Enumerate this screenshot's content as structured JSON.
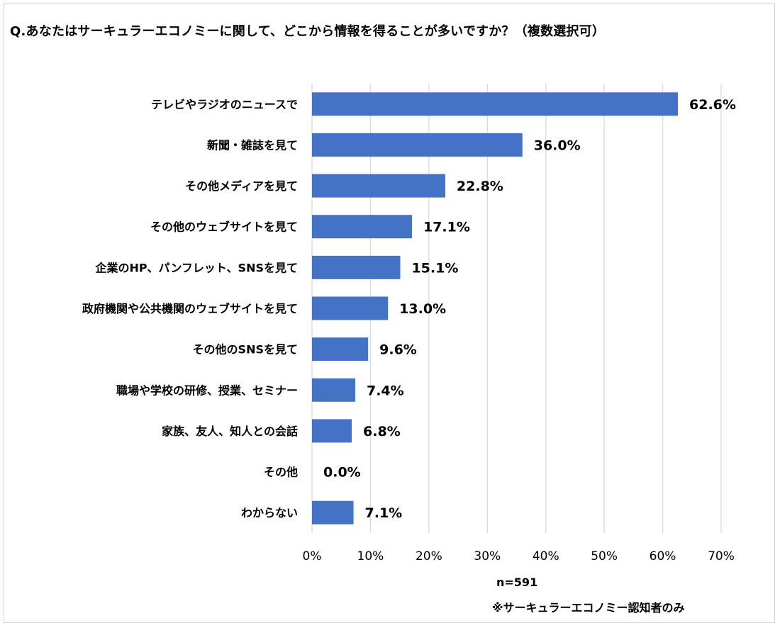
{
  "chart_data": {
    "type": "bar",
    "orientation": "horizontal",
    "title": "Q.あなたはサーキュラーエコノミーに関して、どこから情報を得ることが多いですか？（複数選択可）",
    "categories": [
      "テレビやラジオのニュースで",
      "新聞・雑誌を見て",
      "その他メディアを見て",
      "その他のウェブサイトを見て",
      "企業のHP、パンフレット、SNSを見て",
      "政府機関や公共機関のウェブサイトを見て",
      "その他のSNSを見て",
      "職場や学校の研修、授業、セミナー",
      "家族、友人、知人との会話",
      "その他",
      "わからない"
    ],
    "values": [
      62.6,
      36.0,
      22.8,
      17.1,
      15.1,
      13.0,
      9.6,
      7.4,
      6.8,
      0.0,
      7.1
    ],
    "value_labels": [
      "62.6%",
      "36.0%",
      "22.8%",
      "17.1%",
      "15.1%",
      "13.0%",
      "9.6%",
      "7.4%",
      "6.8%",
      "0.0%",
      "7.1%"
    ],
    "xlim": [
      0,
      70
    ],
    "xticks": [
      0,
      10,
      20,
      30,
      40,
      50,
      60,
      70
    ],
    "xtick_labels": [
      "0%",
      "10%",
      "20%",
      "30%",
      "40%",
      "50%",
      "60%",
      "70%"
    ],
    "grid": "vertical",
    "bar_color": "#4472C4",
    "grid_color": "#D9D9D9"
  },
  "notes": {
    "sample_size": "n=591",
    "scope": "※サーキュラーエコノミー認知者のみ"
  }
}
